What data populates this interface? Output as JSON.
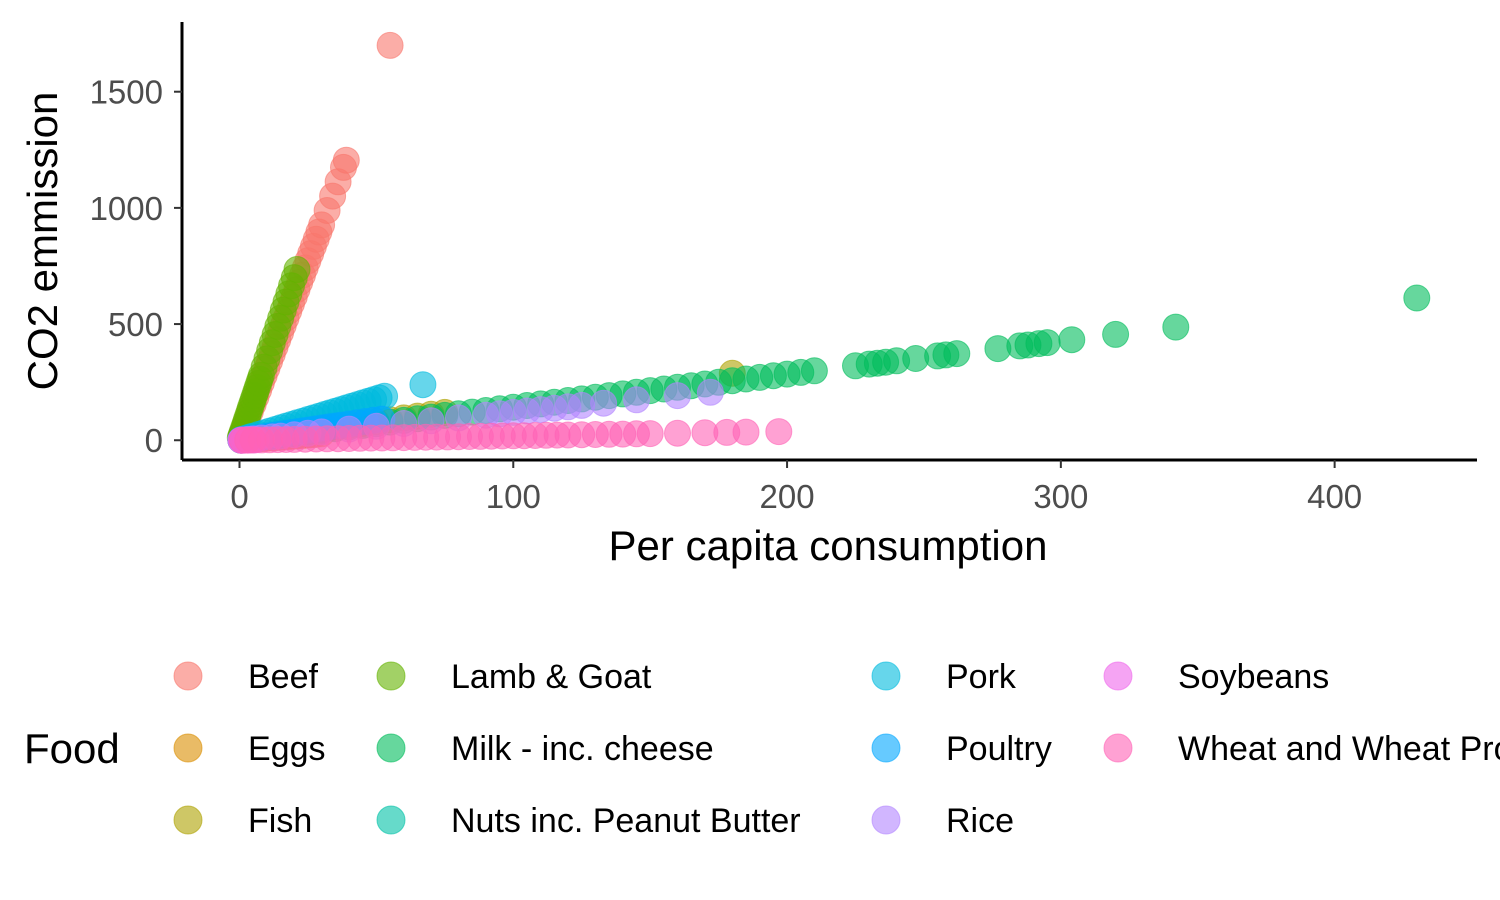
{
  "chart_data": {
    "type": "scatter",
    "title": "",
    "xlabel": "Per capita consumption",
    "ylabel": "CO2 emmission",
    "xlim": [
      -21,
      452
    ],
    "ylim": [
      -85,
      1800
    ],
    "x_ticks": [
      "0",
      "100",
      "200",
      "300",
      "400"
    ],
    "x_tick_values": [
      0,
      100,
      200,
      300,
      400
    ],
    "y_ticks": [
      "0",
      "500",
      "1000",
      "1500"
    ],
    "y_tick_values": [
      0,
      500,
      1000,
      1500
    ],
    "grid": false,
    "legend_title": "Food",
    "legend_position": "bottom",
    "series": [
      {
        "name": "Beef",
        "color": "#F8766D",
        "ratio": 30.9,
        "x": [
          0.5,
          1,
          2,
          3,
          4,
          5,
          6,
          7,
          8,
          9,
          10,
          11,
          12,
          13,
          14,
          15,
          16,
          17,
          18,
          19,
          20,
          21,
          22,
          23,
          24,
          25,
          26,
          27,
          28,
          29,
          30,
          32,
          34,
          36,
          38,
          39,
          55
        ]
      },
      {
        "name": "Eggs",
        "color": "#DB8E00",
        "ratio": 0.92,
        "x": [
          0.5,
          1,
          2,
          3,
          4,
          5,
          6,
          7,
          8,
          9,
          10,
          11,
          12,
          13,
          14,
          15,
          16,
          17,
          18,
          19,
          20,
          21,
          22,
          23,
          24,
          25,
          26,
          27,
          28,
          30
        ]
      },
      {
        "name": "Fish",
        "color": "#AEA200",
        "ratio": 1.6,
        "x": [
          0.5,
          1,
          2,
          3,
          5,
          7,
          9,
          11,
          13,
          15,
          17,
          19,
          21,
          23,
          25,
          27,
          30,
          33,
          36,
          40,
          45,
          50,
          55,
          60,
          65,
          70,
          75,
          180
        ]
      },
      {
        "name": "Lamb & Goat",
        "color": "#64B200",
        "ratio": 35,
        "x": [
          0.3,
          0.6,
          1,
          1.5,
          2,
          2.5,
          3,
          3.5,
          4,
          4.5,
          5,
          5.5,
          6,
          6.5,
          7,
          7.5,
          8,
          9,
          10,
          11,
          12,
          13,
          14,
          15,
          16,
          17,
          18,
          19,
          20,
          21
        ]
      },
      {
        "name": "Milk - inc. cheese",
        "color": "#00BD5C",
        "ratio": 1.424,
        "x": [
          1,
          3,
          5,
          8,
          12,
          15,
          20,
          25,
          30,
          35,
          40,
          45,
          50,
          55,
          60,
          65,
          70,
          75,
          80,
          85,
          90,
          95,
          100,
          105,
          110,
          115,
          120,
          125,
          130,
          135,
          140,
          145,
          150,
          155,
          160,
          165,
          170,
          175,
          180,
          185,
          190,
          195,
          200,
          205,
          210,
          225,
          230,
          233,
          236,
          240,
          247,
          255,
          258,
          262,
          277,
          285,
          288,
          292,
          295,
          304,
          320,
          342,
          430
        ]
      },
      {
        "name": "Nuts inc. Peanut Butter",
        "color": "#00C1A7",
        "ratio": 1.3,
        "x": [
          0.5,
          1,
          2,
          3,
          4,
          5,
          6,
          7,
          8
        ]
      },
      {
        "name": "Pork",
        "color": "#00BADE",
        "ratio": 3.57,
        "x": [
          0.5,
          1,
          2,
          3,
          4,
          5,
          7,
          9,
          11,
          13,
          15,
          17,
          19,
          21,
          23,
          25,
          27,
          29,
          31,
          33,
          35,
          37,
          39,
          41,
          43,
          45,
          47,
          49,
          51,
          53,
          67
        ]
      },
      {
        "name": "Poultry",
        "color": "#00A6FF",
        "ratio": 1.75,
        "x": [
          0.5,
          1,
          2,
          3,
          5,
          7,
          9,
          11,
          13,
          15,
          17,
          19,
          21,
          23,
          25,
          27,
          29,
          31,
          33,
          35,
          37,
          40,
          43,
          46,
          49,
          52
        ]
      },
      {
        "name": "Rice",
        "color": "#B385FF",
        "ratio": 1.2,
        "x": [
          0.5,
          1,
          3,
          5,
          8,
          12,
          15,
          20,
          25,
          30,
          40,
          50,
          60,
          70,
          80,
          90,
          95,
          100,
          105,
          110,
          115,
          120,
          125,
          133,
          145,
          160,
          172
        ]
      },
      {
        "name": "Soybeans",
        "color": "#EF67EB",
        "ratio": 0.3,
        "x": [
          0.5,
          1,
          2,
          3,
          4,
          5,
          6
        ]
      },
      {
        "name": "Wheat and Wheat Products",
        "color": "#FF63B6",
        "ratio": 0.19,
        "x": [
          1,
          3,
          5,
          8,
          11,
          14,
          17,
          20,
          24,
          28,
          32,
          36,
          40,
          44,
          48,
          52,
          56,
          60,
          64,
          68,
          72,
          76,
          80,
          84,
          88,
          92,
          96,
          100,
          104,
          108,
          112,
          116,
          120,
          125,
          130,
          135,
          140,
          145,
          150,
          160,
          170,
          178,
          185,
          197
        ]
      }
    ]
  }
}
